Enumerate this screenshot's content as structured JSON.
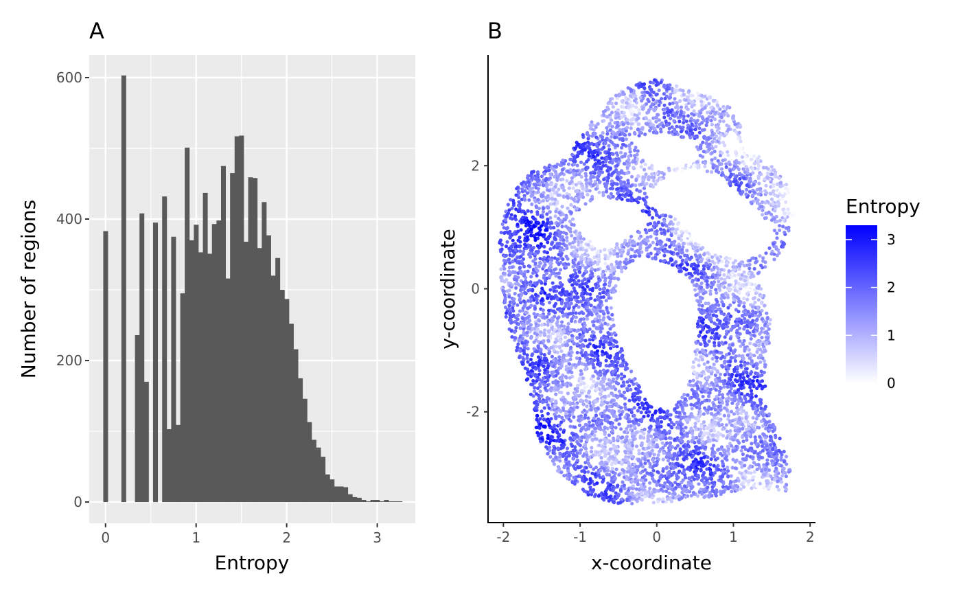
{
  "figure": {
    "panel_a_tag": "A",
    "panel_b_tag": "B"
  },
  "chart_data": [
    {
      "type": "bar",
      "panel": "A",
      "title": "",
      "xlabel": "Entropy",
      "ylabel": "Number of regions",
      "xlim": [
        -0.18,
        3.42
      ],
      "ylim": [
        -30,
        632
      ],
      "x_ticks": [
        0,
        1,
        2,
        3
      ],
      "x_tick_labels": [
        "0",
        "1",
        "2",
        "3"
      ],
      "y_ticks": [
        0,
        200,
        400,
        600
      ],
      "y_tick_labels": [
        "0",
        "200",
        "400",
        "600"
      ],
      "grid": true,
      "bin_width": 0.05,
      "bin_centers": [
        0.0,
        0.2,
        0.35,
        0.4,
        0.45,
        0.55,
        0.65,
        0.7,
        0.75,
        0.8,
        0.85,
        0.9,
        0.95,
        1.0,
        1.05,
        1.1,
        1.15,
        1.2,
        1.25,
        1.3,
        1.35,
        1.4,
        1.45,
        1.5,
        1.55,
        1.6,
        1.65,
        1.7,
        1.75,
        1.8,
        1.85,
        1.9,
        1.95,
        2.0,
        2.05,
        2.1,
        2.15,
        2.2,
        2.25,
        2.3,
        2.35,
        2.4,
        2.45,
        2.5,
        2.55,
        2.6,
        2.65,
        2.7,
        2.75,
        2.8,
        2.85,
        2.9,
        2.95,
        3.0,
        3.05,
        3.1,
        3.15,
        3.2,
        3.25,
        3.3
      ],
      "values": [
        383,
        603,
        236,
        408,
        170,
        395,
        432,
        103,
        375,
        109,
        295,
        501,
        370,
        392,
        353,
        437,
        351,
        393,
        398,
        475,
        316,
        465,
        517,
        518,
        368,
        459,
        458,
        359,
        424,
        377,
        320,
        345,
        300,
        287,
        252,
        216,
        175,
        146,
        113,
        88,
        77,
        64,
        39,
        32,
        22,
        22,
        21,
        11,
        7,
        6,
        3,
        1,
        3,
        3,
        1,
        3,
        1,
        1,
        1,
        0
      ]
    },
    {
      "type": "scatter",
      "panel": "B",
      "title": "",
      "xlabel": "x-coordinate",
      "ylabel": "y-coordinate",
      "xlim": [
        -2.2,
        2.07
      ],
      "ylim": [
        -3.8,
        3.8
      ],
      "x_ticks": [
        -2,
        -1,
        0,
        1,
        2
      ],
      "x_tick_labels": [
        "-2",
        "-1",
        "0",
        "1",
        "2"
      ],
      "y_ticks": [
        -2,
        0,
        2
      ],
      "y_tick_labels": [
        "-2",
        "0",
        "2"
      ],
      "grid": false,
      "color_variable": "Entropy",
      "color_scale": {
        "low": "#ffffff",
        "high": "#0000ff",
        "limits": [
          0,
          3.3
        ],
        "breaks": [
          0,
          1,
          2,
          3
        ],
        "break_labels": [
          "0",
          "1",
          "2",
          "3"
        ]
      },
      "legend_title": "Entropy",
      "legend_position": "right",
      "description_region_count": "dense tissue section of several thousand regions coloured by entropy"
    }
  ],
  "colors": {
    "panel_bg": "#ebebeb",
    "gridline": "#ffffff",
    "bar_fill": "#595959",
    "axis_line": "#000000",
    "tick_text": "#4d4d4d",
    "gradient_low": "#ffffff",
    "gradient_high": "#0000ff"
  }
}
